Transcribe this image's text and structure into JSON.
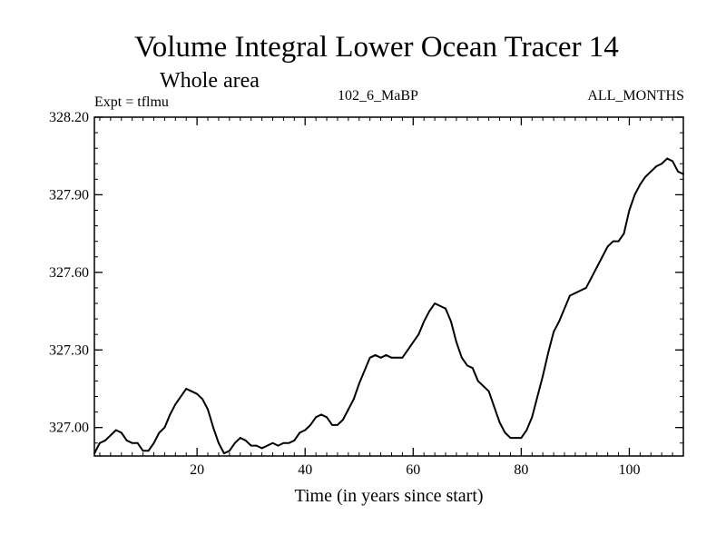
{
  "chart_data": {
    "type": "line",
    "title": "Volume Integral Lower Ocean Tracer 14",
    "subtitle": "Whole area",
    "experiment_label": "Expt = tflmu",
    "run_label": "102_6_MaBP",
    "period_label": "ALL_MONTHS",
    "xlabel": "Time (in years since start)",
    "ylabel": "",
    "xlim": [
      1,
      110
    ],
    "ylim": [
      326.89,
      328.2
    ],
    "x_ticks": [
      20,
      40,
      60,
      80,
      100
    ],
    "x_tick_labels": [
      "20",
      "40",
      "60",
      "80",
      "100"
    ],
    "y_ticks": [
      327.0,
      327.3,
      327.6,
      327.9,
      328.2
    ],
    "y_tick_labels": [
      "327.00",
      "327.30",
      "327.60",
      "327.90",
      "328.20"
    ],
    "series": [
      {
        "name": "Volume Integral Lower Ocean Tracer 14",
        "x": [
          1,
          2,
          3,
          4,
          5,
          6,
          7,
          8,
          9,
          10,
          11,
          12,
          13,
          14,
          15,
          16,
          17,
          18,
          19,
          20,
          21,
          22,
          23,
          24,
          25,
          26,
          27,
          28,
          29,
          30,
          31,
          32,
          33,
          34,
          35,
          36,
          37,
          38,
          39,
          40,
          41,
          42,
          43,
          44,
          45,
          46,
          47,
          48,
          49,
          50,
          51,
          52,
          53,
          54,
          55,
          56,
          57,
          58,
          59,
          60,
          61,
          62,
          63,
          64,
          65,
          66,
          67,
          68,
          69,
          70,
          71,
          72,
          73,
          74,
          75,
          76,
          77,
          78,
          79,
          80,
          81,
          82,
          83,
          84,
          85,
          86,
          87,
          88,
          89,
          90,
          91,
          92,
          93,
          94,
          95,
          96,
          97,
          98,
          99,
          100,
          101,
          102,
          103,
          104,
          105,
          106,
          107,
          108,
          109,
          110
        ],
        "y": [
          326.9,
          326.94,
          326.95,
          326.97,
          326.99,
          326.98,
          326.95,
          326.94,
          326.94,
          326.91,
          326.91,
          326.94,
          326.98,
          327.0,
          327.05,
          327.09,
          327.12,
          327.15,
          327.14,
          327.13,
          327.11,
          327.07,
          327.0,
          326.94,
          326.9,
          326.91,
          326.94,
          326.96,
          326.95,
          326.93,
          326.93,
          326.92,
          326.93,
          326.94,
          326.93,
          326.94,
          326.94,
          326.95,
          326.98,
          326.99,
          327.01,
          327.04,
          327.05,
          327.04,
          327.01,
          327.01,
          327.03,
          327.07,
          327.11,
          327.17,
          327.22,
          327.27,
          327.28,
          327.27,
          327.28,
          327.27,
          327.27,
          327.27,
          327.3,
          327.33,
          327.36,
          327.41,
          327.45,
          327.48,
          327.47,
          327.46,
          327.41,
          327.33,
          327.27,
          327.24,
          327.23,
          327.18,
          327.16,
          327.14,
          327.08,
          327.02,
          326.98,
          326.96,
          326.96,
          326.96,
          326.99,
          327.04,
          327.12,
          327.2,
          327.29,
          327.37,
          327.41,
          327.46,
          327.51,
          327.52,
          327.53,
          327.54,
          327.58,
          327.62,
          327.66,
          327.7,
          327.72,
          327.72,
          327.75,
          327.84,
          327.9,
          327.94,
          327.97,
          327.99,
          328.01,
          328.02,
          328.04,
          328.03,
          327.99,
          327.98
        ]
      }
    ]
  }
}
